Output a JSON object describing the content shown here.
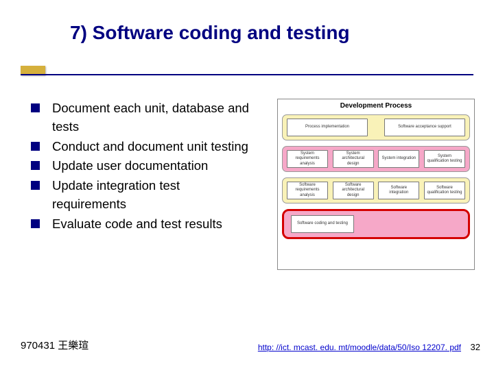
{
  "title": "7) Software coding and testing",
  "bullets": [
    "Document each unit, database and tests",
    "Conduct and document unit testing",
    "Update user documentation",
    "Update integration test requirements",
    "Evaluate code and test results"
  ],
  "diagram": {
    "title": "Development Process",
    "row1": [
      "Process\nimplementation",
      "Software\nacceptance\nsupport"
    ],
    "row2": [
      "System\nrequirements\nanalysis",
      "System\narchitectural\ndesign",
      "System\nintegration",
      "System\nqualification\ntesting"
    ],
    "row3": [
      "Software\nrequirements\nanalysis",
      "Software\narchitectural\ndesign",
      "Software\nintegration",
      "Software\nqualification\ntesting"
    ],
    "row4": [
      "Software\ncoding and testing"
    ],
    "colors": {
      "yellow": "#f9f2b8",
      "pink": "#f6a8c8",
      "highlight_border": "#d40000"
    }
  },
  "footer": {
    "left": "970431 王樂瑄",
    "link": "http: //ict. mcast. edu. mt/moodle/data/50/Iso 12207. pdf",
    "page": "32"
  }
}
